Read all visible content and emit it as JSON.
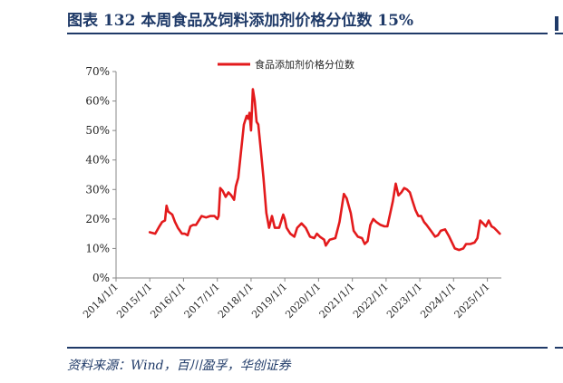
{
  "figure": {
    "title": "图表 132    本周食品及饲料添加剂价格分位数 15%",
    "source": "资料来源：Wind，百川盈孚，华创证券"
  },
  "colors": {
    "series": "#e31a1c",
    "accent": "#1f3a68",
    "axis": "#888888"
  },
  "chart_data": {
    "type": "line",
    "title": "",
    "xlabel": "",
    "ylabel": "",
    "grid": false,
    "legend": "top-center",
    "ylim": [
      0,
      70
    ],
    "xlim": [
      "2014-01-01",
      "2025-06-01"
    ],
    "yticks": [
      "0%",
      "10%",
      "20%",
      "30%",
      "40%",
      "50%",
      "60%",
      "70%"
    ],
    "xticks": [
      "2014/1/1",
      "2015/1/1",
      "2016/1/1",
      "2017/1/1",
      "2018/1/1",
      "2019/1/1",
      "2020/1/1",
      "2021/1/1",
      "2022/1/1",
      "2023/1/1",
      "2024/1/1",
      "2025/1/1"
    ],
    "series": [
      {
        "name": "食品添加剂价格分位数",
        "points": [
          [
            "2015-01-01",
            15.5
          ],
          [
            "2015-03-01",
            15
          ],
          [
            "2015-04-15",
            17.5
          ],
          [
            "2015-05-15",
            19
          ],
          [
            "2015-06-15",
            19.5
          ],
          [
            "2015-07-01",
            24.5
          ],
          [
            "2015-07-20",
            22.5
          ],
          [
            "2015-09-01",
            21.5
          ],
          [
            "2015-10-01",
            19
          ],
          [
            "2015-11-01",
            17
          ],
          [
            "2015-12-15",
            15
          ],
          [
            "2016-01-15",
            15
          ],
          [
            "2016-02-15",
            14.5
          ],
          [
            "2016-03-15",
            17.5
          ],
          [
            "2016-04-15",
            18
          ],
          [
            "2016-05-15",
            18
          ],
          [
            "2016-06-15",
            19.5
          ],
          [
            "2016-07-15",
            21
          ],
          [
            "2016-09-01",
            20.5
          ],
          [
            "2016-10-15",
            21
          ],
          [
            "2016-12-01",
            21
          ],
          [
            "2017-01-01",
            20
          ],
          [
            "2017-01-15",
            21
          ],
          [
            "2017-02-01",
            30.5
          ],
          [
            "2017-03-01",
            29.5
          ],
          [
            "2017-04-01",
            27.5
          ],
          [
            "2017-05-01",
            29
          ],
          [
            "2017-06-01",
            28
          ],
          [
            "2017-07-01",
            26.5
          ],
          [
            "2017-07-20",
            31
          ],
          [
            "2017-08-15",
            34
          ],
          [
            "2017-09-15",
            43
          ],
          [
            "2017-10-15",
            52
          ],
          [
            "2017-11-15",
            55
          ],
          [
            "2017-12-01",
            54
          ],
          [
            "2017-12-15",
            56
          ],
          [
            "2018-01-01",
            50
          ],
          [
            "2018-01-20",
            64
          ],
          [
            "2018-02-10",
            60
          ],
          [
            "2018-03-01",
            53
          ],
          [
            "2018-03-20",
            52
          ],
          [
            "2018-04-15",
            44
          ],
          [
            "2018-05-15",
            34
          ],
          [
            "2018-06-15",
            22
          ],
          [
            "2018-07-15",
            17
          ],
          [
            "2018-08-15",
            21
          ],
          [
            "2018-09-15",
            17
          ],
          [
            "2018-11-01",
            17
          ],
          [
            "2018-12-15",
            21.5
          ],
          [
            "2019-01-01",
            20
          ],
          [
            "2019-01-20",
            17
          ],
          [
            "2019-03-01",
            15
          ],
          [
            "2019-04-15",
            14
          ],
          [
            "2019-05-15",
            17
          ],
          [
            "2019-07-01",
            18.5
          ],
          [
            "2019-08-15",
            17
          ],
          [
            "2019-10-01",
            14
          ],
          [
            "2019-11-15",
            13.5
          ],
          [
            "2019-12-15",
            15
          ],
          [
            "2020-01-15",
            14
          ],
          [
            "2020-03-01",
            13
          ],
          [
            "2020-03-20",
            11
          ],
          [
            "2020-05-01",
            13
          ],
          [
            "2020-07-01",
            13.5
          ],
          [
            "2020-08-15",
            19
          ],
          [
            "2020-10-01",
            28.5
          ],
          [
            "2020-11-01",
            27
          ],
          [
            "2020-12-15",
            22
          ],
          [
            "2021-01-15",
            16
          ],
          [
            "2021-03-01",
            14
          ],
          [
            "2021-04-15",
            13.5
          ],
          [
            "2021-05-15",
            11.5
          ],
          [
            "2021-06-15",
            12.5
          ],
          [
            "2021-07-15",
            18
          ],
          [
            "2021-08-15",
            20
          ],
          [
            "2021-09-15",
            19
          ],
          [
            "2021-11-01",
            18
          ],
          [
            "2021-12-15",
            17.5
          ],
          [
            "2022-01-15",
            17.5
          ],
          [
            "2022-03-15",
            26
          ],
          [
            "2022-04-15",
            32
          ],
          [
            "2022-05-15",
            28
          ],
          [
            "2022-06-15",
            29
          ],
          [
            "2022-07-15",
            30.5
          ],
          [
            "2022-08-15",
            30
          ],
          [
            "2022-09-15",
            29
          ],
          [
            "2022-10-15",
            26
          ],
          [
            "2022-11-15",
            23
          ],
          [
            "2022-12-15",
            21
          ],
          [
            "2023-01-15",
            21
          ],
          [
            "2023-02-15",
            19
          ],
          [
            "2023-03-15",
            18
          ],
          [
            "2023-05-01",
            16
          ],
          [
            "2023-06-15",
            14
          ],
          [
            "2023-07-15",
            14.5
          ],
          [
            "2023-08-15",
            16
          ],
          [
            "2023-10-01",
            16.5
          ],
          [
            "2023-11-15",
            14
          ],
          [
            "2023-12-15",
            12
          ],
          [
            "2024-01-15",
            10
          ],
          [
            "2024-03-01",
            9.5
          ],
          [
            "2024-04-15",
            10
          ],
          [
            "2024-05-15",
            11.5
          ],
          [
            "2024-07-01",
            11.5
          ],
          [
            "2024-08-15",
            12
          ],
          [
            "2024-09-15",
            13.5
          ],
          [
            "2024-10-15",
            19.5
          ],
          [
            "2024-11-15",
            18.5
          ],
          [
            "2024-12-15",
            17.5
          ],
          [
            "2025-01-15",
            19.5
          ],
          [
            "2025-02-15",
            17.5
          ],
          [
            "2025-03-15",
            17
          ],
          [
            "2025-04-15",
            16
          ],
          [
            "2025-05-15",
            15
          ]
        ]
      }
    ]
  }
}
